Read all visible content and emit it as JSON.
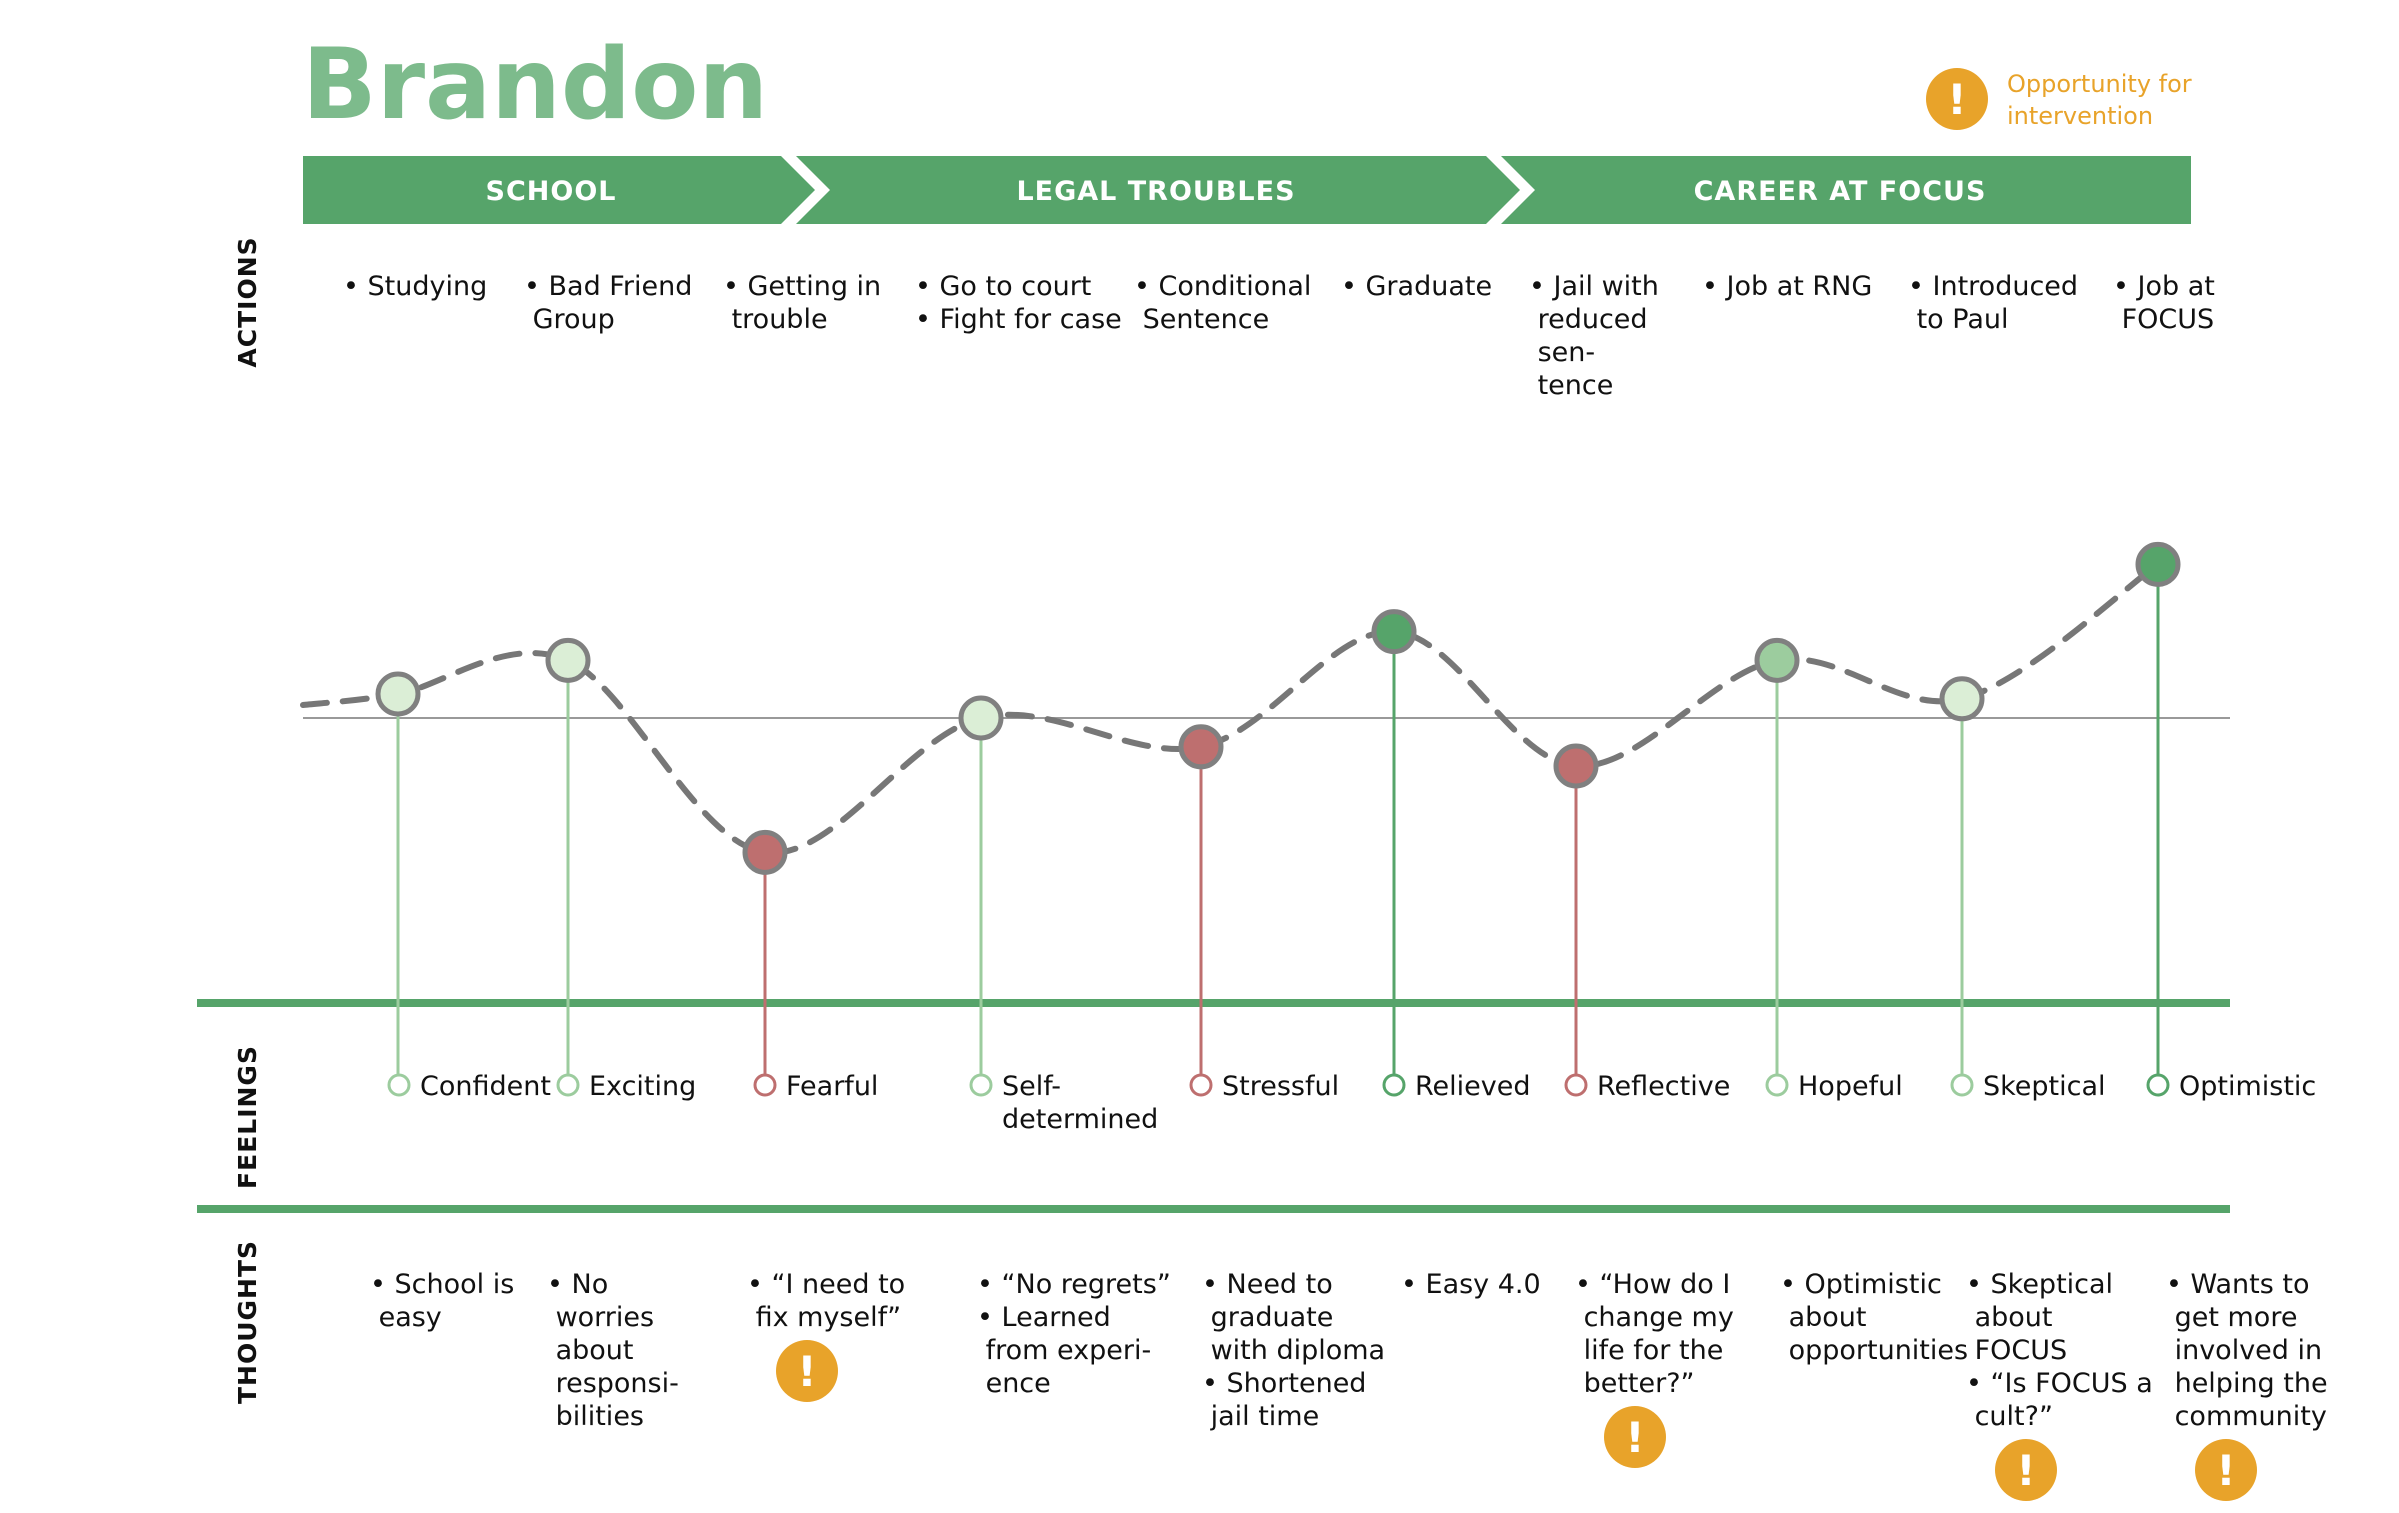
{
  "title": "Brandon",
  "legend": {
    "icon": "exclamation-alert-icon",
    "lines": [
      "Opportunity for",
      "intervention"
    ]
  },
  "colors": {
    "stage_bar": "#56a46a",
    "title": "#7dbb8c",
    "positive_strong": "#56a46a",
    "positive_medium": "#9ccc9e",
    "positive_light": "#dbeed6",
    "negative": "#be6f6f",
    "alert": "#e8a32a",
    "curve": "#777777"
  },
  "stages": [
    "SCHOOL",
    "LEGAL TROUBLES",
    "CAREER AT FOCUS"
  ],
  "row_labels": {
    "actions": "ACTIONS",
    "feelings": "FEELINGS",
    "thoughts": "THOUGHTS"
  },
  "moments": [
    {
      "actions": [
        [
          "• Studying"
        ]
      ],
      "feeling": "Confident",
      "tone": "light",
      "level": 0.5,
      "thoughts": [
        [
          "• School is",
          "  easy"
        ]
      ],
      "alert": false
    },
    {
      "actions": [
        [
          "• Bad Friend",
          "  Group"
        ]
      ],
      "feeling": "Exciting",
      "tone": "light",
      "level": 1.2,
      "thoughts": [
        [
          "• No",
          "  worries",
          "  about",
          "  responsi-",
          "  bilities"
        ]
      ],
      "alert": false
    },
    {
      "actions": [
        [
          "• Getting in",
          "  trouble"
        ]
      ],
      "feeling": "Fearful",
      "tone": "negative",
      "level": -2.8,
      "thoughts": [
        [
          "• “I need to",
          "   fix myself”"
        ]
      ],
      "alert": true
    },
    {
      "actions": [
        [
          "• Go to court"
        ],
        [
          "• Fight for case"
        ]
      ],
      "feeling": [
        "Self-",
        "determined"
      ],
      "tone": "light",
      "level": 0.0,
      "thoughts": [
        [
          "• “No regrets”"
        ],
        [
          "•  Learned",
          "   from experi-",
          "   ence"
        ]
      ],
      "alert": false
    },
    {
      "actions": [
        [
          "• Conditional",
          "  Sentence"
        ]
      ],
      "feeling": "Stressful",
      "tone": "negative",
      "level": -0.6,
      "thoughts": [
        [
          "• Need to",
          "  graduate",
          "  with diploma"
        ],
        [
          "• Shortened",
          "  jail time"
        ]
      ],
      "alert": false
    },
    {
      "actions": [
        [
          "• Graduate"
        ]
      ],
      "feeling": "Relieved",
      "tone": "strong",
      "level": 1.8,
      "thoughts": [
        [
          "• Easy 4.0"
        ]
      ],
      "alert": false
    },
    {
      "actions": [
        [
          "• Jail with",
          "  reduced",
          "  sen-",
          "  tence"
        ]
      ],
      "feeling": "Reflective",
      "tone": "negative",
      "level": -1.0,
      "thoughts": [
        [
          "• “How do I",
          "   change my",
          "   life for the",
          "   better?”"
        ]
      ],
      "alert": true
    },
    {
      "actions": [
        [
          "• Job at RNG"
        ]
      ],
      "feeling": "Hopeful",
      "tone": "medium",
      "level": 1.2,
      "thoughts": [
        [
          "• Optimistic",
          "  about",
          "  opportunities"
        ]
      ],
      "alert": false
    },
    {
      "actions": [
        [
          "• Introduced",
          "  to Paul"
        ]
      ],
      "feeling": "Skeptical",
      "tone": "light",
      "level": 0.4,
      "thoughts": [
        [
          "•  Skeptical",
          "   about",
          "   FOCUS"
        ],
        [
          "• “Is FOCUS a",
          "   cult?”"
        ]
      ],
      "alert": true
    },
    {
      "actions": [
        [
          "• Job at",
          "  FOCUS"
        ]
      ],
      "feeling": "Optimistic",
      "tone": "strong",
      "level": 3.2,
      "thoughts": [
        [
          "• Wants to",
          "  get more",
          "  involved in",
          "  helping the",
          "  community"
        ]
      ],
      "alert": true
    }
  ]
}
